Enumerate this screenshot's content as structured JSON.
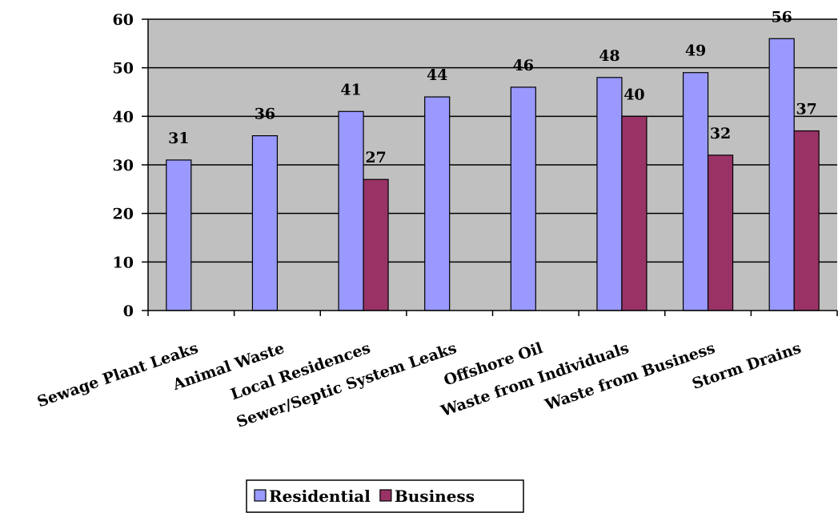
{
  "chart_data": {
    "type": "bar",
    "categories": [
      "Sewage Plant Leaks",
      "Animal Waste",
      "Local Residences",
      "Sewer/Septic System Leaks",
      "Offshore Oil",
      "Waste from Individuals",
      "Waste from Business",
      "Storm Drains"
    ],
    "series": [
      {
        "name": "Residential",
        "color": "#9999ff",
        "values": [
          31,
          36,
          41,
          44,
          46,
          48,
          49,
          56
        ]
      },
      {
        "name": "Business",
        "color": "#993366",
        "values": [
          null,
          null,
          27,
          null,
          null,
          40,
          32,
          37
        ]
      }
    ],
    "ylim": [
      0,
      60
    ],
    "yticks": [
      0,
      10,
      20,
      30,
      40,
      50,
      60
    ],
    "plot_background": "#c0c0c0",
    "grid": true,
    "legend_position": "bottom"
  }
}
